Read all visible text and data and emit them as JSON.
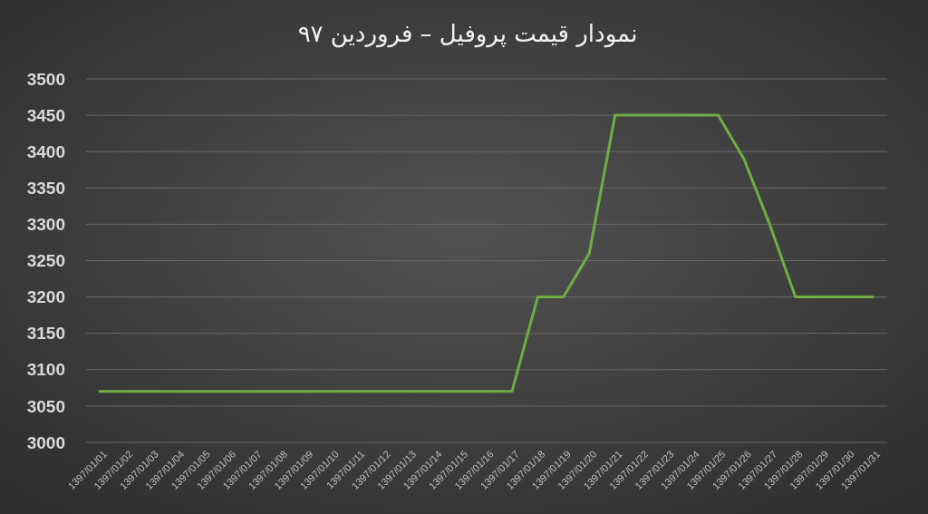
{
  "chart_data": {
    "type": "line",
    "title": "نمودار قیمت پروفیل – فروردین ۹۷",
    "categories": [
      "1397/01/01",
      "1397/01/02",
      "1397/01/03",
      "1397/01/04",
      "1397/01/05",
      "1397/01/06",
      "1397/01/07",
      "1397/01/08",
      "1397/01/09",
      "1397/01/10",
      "1397/01/11",
      "1397/01/12",
      "1397/01/13",
      "1397/01/14",
      "1397/01/15",
      "1397/01/16",
      "1397/01/17",
      "1397/01/18",
      "1397/01/19",
      "1397/01/20",
      "1397/01/21",
      "1397/01/22",
      "1397/01/23",
      "1397/01/24",
      "1397/01/25",
      "1397/01/26",
      "1397/01/27",
      "1397/01/28",
      "1397/01/29",
      "1397/01/30",
      "1397/01/31"
    ],
    "series": [
      {
        "color": "#70ad47",
        "values": [
          3070,
          3070,
          3070,
          3070,
          3070,
          3070,
          3070,
          3070,
          3070,
          3070,
          3070,
          3070,
          3070,
          3070,
          3070,
          3070,
          3070,
          3200,
          3200,
          3260,
          3450,
          3450,
          3450,
          3450,
          3450,
          3390,
          3300,
          3200,
          3200,
          3200,
          3200
        ]
      }
    ],
    "ylim": [
      3000,
      3500
    ],
    "yticks": [
      3000,
      3050,
      3100,
      3150,
      3200,
      3250,
      3300,
      3350,
      3400,
      3450,
      3500
    ],
    "grid": "y",
    "marker": "none",
    "line_style": "solid"
  }
}
